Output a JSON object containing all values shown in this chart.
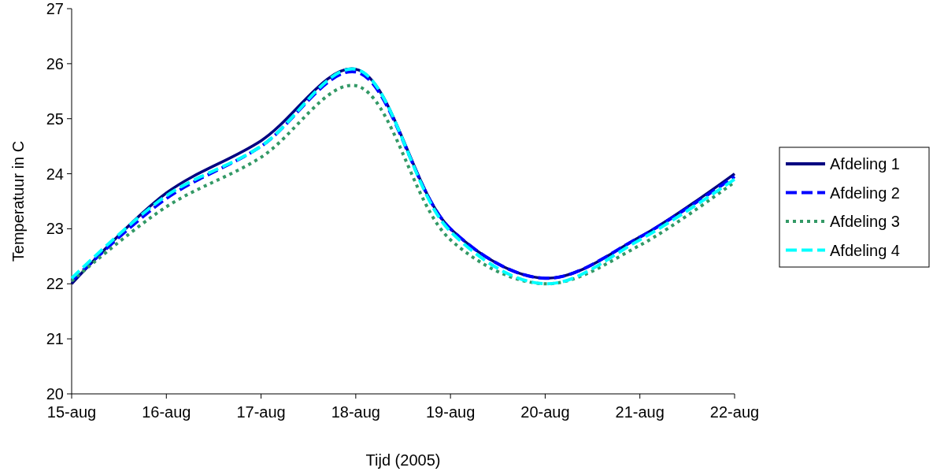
{
  "chart_data": {
    "type": "line",
    "xlabel": "Tijd (2005)",
    "ylabel": "Temperatuur in C",
    "x": [
      "2005-08-15",
      "2005-08-16",
      "2005-08-17",
      "2005-08-18",
      "2005-08-19",
      "2005-08-20",
      "2005-08-21",
      "2005-08-22"
    ],
    "xlim": [
      "2005-08-15",
      "2005-08-22"
    ],
    "xticks": [
      {
        "value": "2005-08-15",
        "label": "15-aug"
      },
      {
        "value": "2005-08-16",
        "label": "16-aug"
      },
      {
        "value": "2005-08-17",
        "label": "17-aug"
      },
      {
        "value": "2005-08-18",
        "label": "18-aug"
      },
      {
        "value": "2005-08-19",
        "label": "19-aug"
      },
      {
        "value": "2005-08-20",
        "label": "20-aug"
      },
      {
        "value": "2005-08-21",
        "label": "21-aug"
      },
      {
        "value": "2005-08-22",
        "label": "22-aug"
      }
    ],
    "ylim": [
      20,
      27
    ],
    "yticks": [
      20,
      21,
      22,
      23,
      24,
      25,
      26,
      27
    ],
    "legend": "right",
    "grid": false,
    "series": [
      {
        "name": "Afdeling 1",
        "color": "#000080",
        "line_style": "solid",
        "values": [
          22.0,
          23.65,
          24.6,
          25.9,
          23.0,
          22.1,
          22.85,
          24.0
        ]
      },
      {
        "name": "Afdeling 2",
        "color": "#0000ff",
        "line_style": "dashed",
        "values": [
          22.05,
          23.55,
          24.5,
          25.85,
          23.0,
          22.1,
          22.85,
          23.95
        ]
      },
      {
        "name": "Afdeling 3",
        "color": "#339966",
        "line_style": "dotted",
        "values": [
          22.05,
          23.4,
          24.3,
          25.6,
          22.8,
          22.0,
          22.7,
          23.85
        ]
      },
      {
        "name": "Afdeling 4",
        "color": "#00ffff",
        "line_style": "dashed",
        "values": [
          22.1,
          23.6,
          24.5,
          25.9,
          22.95,
          22.0,
          22.8,
          23.9
        ]
      }
    ]
  }
}
